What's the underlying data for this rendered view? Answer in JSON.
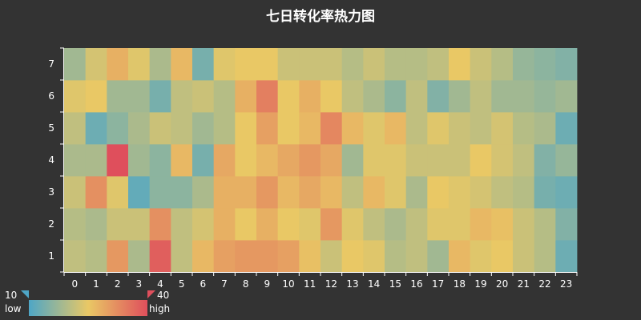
{
  "chart_data": {
    "type": "heatmap",
    "title": "七日转化率热力图",
    "x_categories": [
      "0",
      "1",
      "2",
      "3",
      "4",
      "5",
      "6",
      "7",
      "8",
      "9",
      "10",
      "11",
      "12",
      "13",
      "14",
      "15",
      "16",
      "17",
      "18",
      "19",
      "20",
      "21",
      "22",
      "23"
    ],
    "y_categories": [
      "1",
      "2",
      "3",
      "4",
      "5",
      "6",
      "7"
    ],
    "value_range": [
      10,
      40
    ],
    "color_stops": [
      "#4ea6c6",
      "#e9c865",
      "#df4f5c"
    ],
    "visual_map": {
      "min_label": "10",
      "max_label": "40",
      "low_text": "low",
      "high_text": "high"
    },
    "values": [
      [
        21,
        20,
        31,
        19,
        38,
        21,
        27,
        30,
        31,
        31,
        30,
        26,
        22,
        25,
        24,
        20,
        21,
        18,
        27,
        24,
        25,
        22,
        20,
        13
      ],
      [
        20,
        19,
        22,
        22,
        32,
        21,
        23,
        28,
        25,
        28,
        25,
        24,
        31,
        24,
        21,
        19,
        21,
        24,
        24,
        27,
        26,
        22,
        20,
        15
      ],
      [
        22,
        32,
        24,
        12,
        16,
        16,
        19,
        28,
        28,
        31,
        27,
        29,
        27,
        21,
        27,
        24,
        19,
        25,
        24,
        23,
        21,
        20,
        14,
        13
      ],
      [
        19,
        19,
        40,
        18,
        16,
        27,
        14,
        29,
        25,
        27,
        29,
        31,
        29,
        18,
        24,
        24,
        22,
        22,
        22,
        25,
        23,
        21,
        15,
        17
      ],
      [
        21,
        13,
        16,
        19,
        22,
        21,
        18,
        20,
        25,
        30,
        25,
        27,
        33,
        27,
        24,
        27,
        21,
        24,
        22,
        21,
        23,
        20,
        19,
        13
      ],
      [
        24,
        25,
        18,
        18,
        14,
        21,
        22,
        20,
        28,
        34,
        25,
        28,
        25,
        21,
        19,
        16,
        21,
        15,
        18,
        21,
        18,
        18,
        17,
        18
      ],
      [
        18,
        23,
        28,
        24,
        19,
        27,
        14,
        24,
        25,
        25,
        22,
        22,
        22,
        20,
        22,
        20,
        20,
        21,
        25,
        22,
        20,
        17,
        16,
        15
      ]
    ]
  }
}
